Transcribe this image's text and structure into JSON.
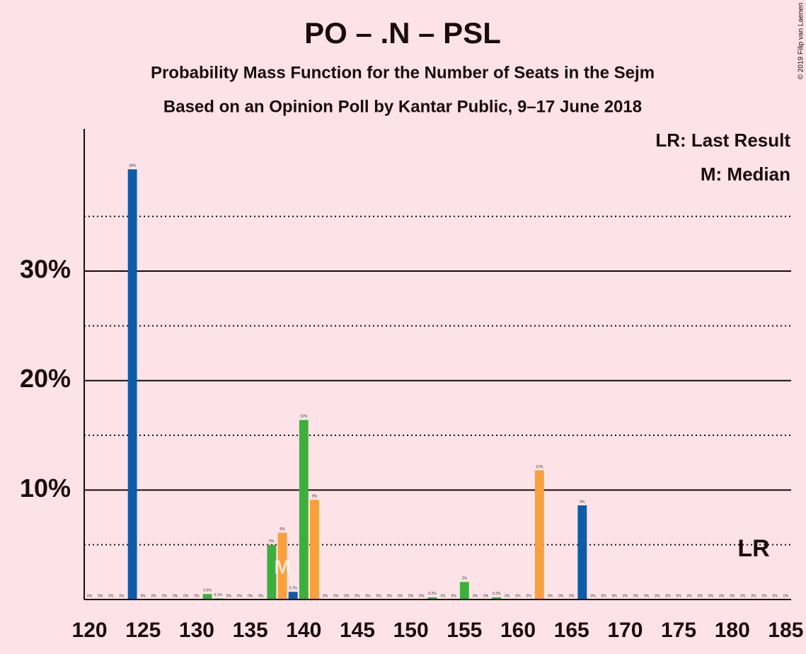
{
  "chart_data": {
    "type": "bar",
    "title": "PO – .N – PSL",
    "subtitle": "Probability Mass Function for the Number of Seats in the Sejm",
    "subtitle2": "Based on an Opinion Poll by Kantar Public, 9–17 June 2018",
    "notes": [
      "LR: Last Result",
      "M: Median"
    ],
    "copyright": "© 2019 Filip van Laenen",
    "x": [
      120,
      121,
      122,
      123,
      124,
      125,
      126,
      127,
      128,
      129,
      130,
      131,
      132,
      133,
      134,
      135,
      136,
      137,
      138,
      139,
      140,
      141,
      142,
      143,
      144,
      145,
      146,
      147,
      148,
      149,
      150,
      151,
      152,
      153,
      154,
      155,
      156,
      157,
      158,
      159,
      160,
      161,
      162,
      163,
      164,
      165,
      166,
      167,
      168,
      169,
      170,
      171,
      172,
      173,
      174,
      175,
      176,
      177,
      178,
      179,
      180,
      181,
      182,
      183,
      184,
      185
    ],
    "values": [
      0,
      0,
      0,
      0,
      39.3,
      0,
      0,
      0,
      0,
      0,
      0,
      0.5,
      0.1,
      0,
      0,
      0,
      0,
      5.0,
      6.1,
      0.7,
      16.4,
      9.1,
      0,
      0,
      0,
      0,
      0,
      0,
      0,
      0,
      0,
      0,
      0.2,
      0,
      0,
      1.6,
      0,
      0,
      0.2,
      0,
      0,
      0,
      11.8,
      0,
      0,
      0,
      8.6,
      0,
      0,
      0,
      0,
      0,
      0,
      0,
      0,
      0,
      0,
      0,
      0,
      0,
      0,
      0,
      0,
      0,
      0,
      0
    ],
    "value_labels": [
      "0%",
      "0%",
      "0%",
      "0%",
      "39%",
      "0%",
      "0%",
      "0%",
      "0%",
      "0%",
      "0%",
      "0.5%",
      "0.1%",
      "0%",
      "0%",
      "0%",
      "0%",
      "5%",
      "6%",
      "0.7%",
      "16%",
      "9%",
      "0%",
      "0%",
      "0%",
      "0%",
      "0%",
      "0%",
      "0%",
      "0%",
      "0%",
      "0%",
      "0.2%",
      "0%",
      "0%",
      "2%",
      "0%",
      "0%",
      "0.2%",
      "0%",
      "0%",
      "0%",
      "12%",
      "0%",
      "0%",
      "0%",
      "9%",
      "0%",
      "0%",
      "0%",
      "0%",
      "0%",
      "0%",
      "0%",
      "0%",
      "0%",
      "0%",
      "0%",
      "0%",
      "0%",
      "0%",
      "0%",
      "0%",
      "0%",
      "0%",
      "0%"
    ],
    "colors": [
      "#0e5ba8",
      "#0e5ba8",
      "#0e5ba8",
      "#0e5ba8",
      "#0e5ba8",
      "#0e5ba8",
      "#0e5ba8",
      "#0e5ba8",
      "#0e5ba8",
      "#0e5ba8",
      "#0e5ba8",
      "#3cb03c",
      "#3cb03c",
      "#0e5ba8",
      "#0e5ba8",
      "#0e5ba8",
      "#0e5ba8",
      "#3cb03c",
      "#f9a03c",
      "#0e5ba8",
      "#3cb03c",
      "#f9a03c",
      "#0e5ba8",
      "#0e5ba8",
      "#0e5ba8",
      "#0e5ba8",
      "#0e5ba8",
      "#0e5ba8",
      "#0e5ba8",
      "#0e5ba8",
      "#0e5ba8",
      "#0e5ba8",
      "#3cb03c",
      "#0e5ba8",
      "#0e5ba8",
      "#3cb03c",
      "#0e5ba8",
      "#0e5ba8",
      "#3cb03c",
      "#0e5ba8",
      "#0e5ba8",
      "#0e5ba8",
      "#f9a03c",
      "#0e5ba8",
      "#0e5ba8",
      "#0e5ba8",
      "#0e5ba8",
      "#0e5ba8",
      "#0e5ba8",
      "#0e5ba8",
      "#0e5ba8",
      "#0e5ba8",
      "#0e5ba8",
      "#0e5ba8",
      "#0e5ba8",
      "#0e5ba8",
      "#0e5ba8",
      "#0e5ba8",
      "#0e5ba8",
      "#0e5ba8",
      "#0e5ba8",
      "#0e5ba8",
      "#0e5ba8",
      "#0e5ba8",
      "#0e5ba8",
      "#0e5ba8"
    ],
    "annotations": [
      {
        "label": "M",
        "x": 138
      },
      {
        "label": "LR",
        "x": 182
      }
    ],
    "xlim": [
      119.5,
      185.5
    ],
    "xticks": [
      120,
      125,
      130,
      135,
      140,
      145,
      150,
      155,
      160,
      165,
      170,
      175,
      180,
      185
    ],
    "ylim": [
      0,
      43
    ],
    "yticks": [
      {
        "value": 10,
        "label": "10%"
      },
      {
        "value": 20,
        "label": "20%"
      },
      {
        "value": 30,
        "label": "30%"
      }
    ],
    "yticks_minor": [
      5,
      15,
      25,
      35
    ],
    "grid": true
  }
}
